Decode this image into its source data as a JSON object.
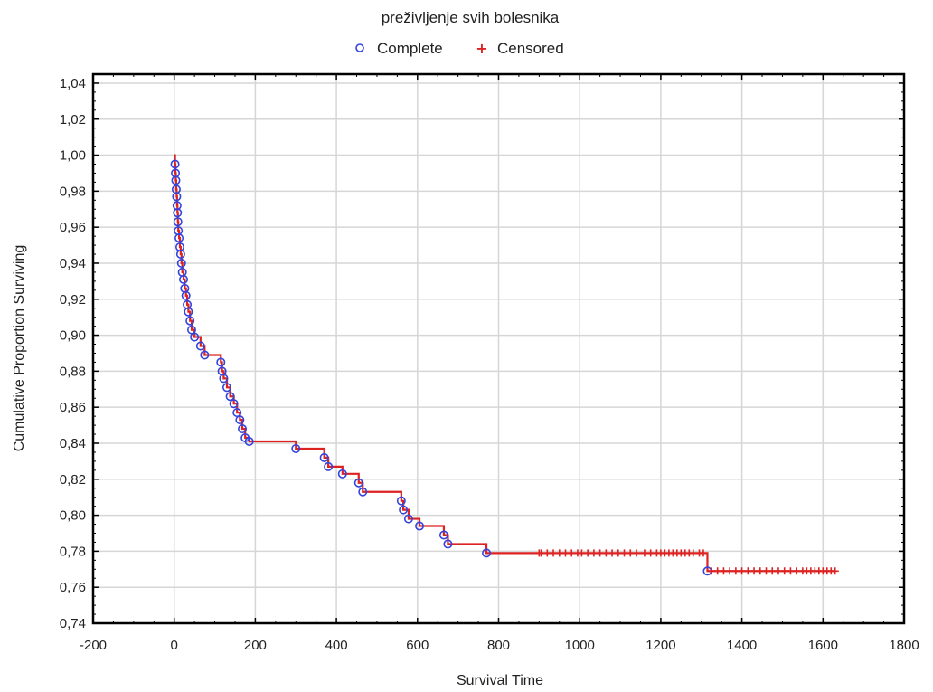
{
  "chart_data": {
    "type": "line",
    "title": "preživljenje svih bolesnika",
    "xlabel": "Survival Time",
    "ylabel": "Cumulative Proportion Surviving",
    "xlim": [
      -200,
      1800
    ],
    "ylim": [
      0.74,
      1.045
    ],
    "x_ticks": [
      "-200",
      "0",
      "200",
      "400",
      "600",
      "800",
      "1000",
      "1200",
      "1400",
      "1600",
      "1800"
    ],
    "y_ticks": [
      "0,74",
      "0,76",
      "0,78",
      "0,80",
      "0,82",
      "0,84",
      "0,86",
      "0,88",
      "0,90",
      "0,92",
      "0,94",
      "0,96",
      "0,98",
      "1,00",
      "1,02",
      "1,04"
    ],
    "grid": true,
    "legend_position": "top-center",
    "colors": {
      "line": "#dd2222",
      "complete": "#3344dd",
      "censored": "#dd2222",
      "grid": "#d6d6d6"
    },
    "series": [
      {
        "name": "Complete",
        "marker": "circle",
        "points": [
          [
            2,
            0.995
          ],
          [
            3,
            0.99
          ],
          [
            4,
            0.986
          ],
          [
            5,
            0.981
          ],
          [
            6,
            0.977
          ],
          [
            7,
            0.972
          ],
          [
            8,
            0.968
          ],
          [
            9,
            0.963
          ],
          [
            10,
            0.958
          ],
          [
            12,
            0.954
          ],
          [
            14,
            0.949
          ],
          [
            16,
            0.945
          ],
          [
            18,
            0.94
          ],
          [
            20,
            0.935
          ],
          [
            23,
            0.931
          ],
          [
            26,
            0.926
          ],
          [
            29,
            0.922
          ],
          [
            32,
            0.917
          ],
          [
            35,
            0.913
          ],
          [
            39,
            0.908
          ],
          [
            43,
            0.903
          ],
          [
            50,
            0.899
          ],
          [
            65,
            0.894
          ],
          [
            75,
            0.889
          ],
          [
            115,
            0.885
          ],
          [
            118,
            0.88
          ],
          [
            122,
            0.876
          ],
          [
            130,
            0.871
          ],
          [
            138,
            0.866
          ],
          [
            147,
            0.862
          ],
          [
            155,
            0.857
          ],
          [
            162,
            0.853
          ],
          [
            168,
            0.848
          ],
          [
            175,
            0.843
          ],
          [
            185,
            0.841
          ],
          [
            300,
            0.837
          ],
          [
            370,
            0.832
          ],
          [
            380,
            0.827
          ],
          [
            415,
            0.823
          ],
          [
            455,
            0.818
          ],
          [
            465,
            0.813
          ],
          [
            560,
            0.808
          ],
          [
            565,
            0.803
          ],
          [
            578,
            0.798
          ],
          [
            605,
            0.794
          ],
          [
            665,
            0.789
          ],
          [
            675,
            0.784
          ],
          [
            770,
            0.779
          ],
          [
            1315,
            0.769
          ]
        ]
      },
      {
        "name": "Censored",
        "marker": "plus",
        "points": [
          [
            900,
            0.779
          ],
          [
            905,
            0.779
          ],
          [
            920,
            0.779
          ],
          [
            935,
            0.779
          ],
          [
            950,
            0.779
          ],
          [
            965,
            0.779
          ],
          [
            980,
            0.779
          ],
          [
            995,
            0.779
          ],
          [
            1005,
            0.779
          ],
          [
            1020,
            0.779
          ],
          [
            1035,
            0.779
          ],
          [
            1050,
            0.779
          ],
          [
            1065,
            0.779
          ],
          [
            1080,
            0.779
          ],
          [
            1095,
            0.779
          ],
          [
            1110,
            0.779
          ],
          [
            1125,
            0.779
          ],
          [
            1140,
            0.779
          ],
          [
            1160,
            0.779
          ],
          [
            1175,
            0.779
          ],
          [
            1190,
            0.779
          ],
          [
            1200,
            0.779
          ],
          [
            1210,
            0.779
          ],
          [
            1220,
            0.779
          ],
          [
            1230,
            0.779
          ],
          [
            1240,
            0.779
          ],
          [
            1250,
            0.779
          ],
          [
            1260,
            0.779
          ],
          [
            1270,
            0.779
          ],
          [
            1280,
            0.779
          ],
          [
            1295,
            0.779
          ],
          [
            1305,
            0.779
          ],
          [
            1325,
            0.769
          ],
          [
            1340,
            0.769
          ],
          [
            1355,
            0.769
          ],
          [
            1370,
            0.769
          ],
          [
            1385,
            0.769
          ],
          [
            1400,
            0.769
          ],
          [
            1415,
            0.769
          ],
          [
            1430,
            0.769
          ],
          [
            1445,
            0.769
          ],
          [
            1460,
            0.769
          ],
          [
            1475,
            0.769
          ],
          [
            1490,
            0.769
          ],
          [
            1505,
            0.769
          ],
          [
            1520,
            0.769
          ],
          [
            1535,
            0.769
          ],
          [
            1550,
            0.769
          ],
          [
            1560,
            0.769
          ],
          [
            1570,
            0.769
          ],
          [
            1580,
            0.769
          ],
          [
            1590,
            0.769
          ],
          [
            1600,
            0.769
          ],
          [
            1610,
            0.769
          ],
          [
            1620,
            0.769
          ],
          [
            1630,
            0.769
          ]
        ]
      }
    ],
    "survival_curve": [
      [
        0,
        1.0
      ],
      [
        2,
        0.995
      ],
      [
        3,
        0.99
      ],
      [
        4,
        0.986
      ],
      [
        5,
        0.981
      ],
      [
        6,
        0.977
      ],
      [
        7,
        0.972
      ],
      [
        8,
        0.968
      ],
      [
        9,
        0.963
      ],
      [
        10,
        0.958
      ],
      [
        12,
        0.954
      ],
      [
        14,
        0.949
      ],
      [
        16,
        0.945
      ],
      [
        18,
        0.94
      ],
      [
        20,
        0.935
      ],
      [
        23,
        0.931
      ],
      [
        26,
        0.926
      ],
      [
        29,
        0.922
      ],
      [
        32,
        0.917
      ],
      [
        35,
        0.913
      ],
      [
        39,
        0.908
      ],
      [
        43,
        0.903
      ],
      [
        50,
        0.899
      ],
      [
        65,
        0.894
      ],
      [
        75,
        0.889
      ],
      [
        115,
        0.885
      ],
      [
        118,
        0.88
      ],
      [
        122,
        0.876
      ],
      [
        130,
        0.871
      ],
      [
        138,
        0.866
      ],
      [
        147,
        0.862
      ],
      [
        155,
        0.857
      ],
      [
        162,
        0.853
      ],
      [
        168,
        0.848
      ],
      [
        175,
        0.843
      ],
      [
        185,
        0.841
      ],
      [
        300,
        0.837
      ],
      [
        370,
        0.832
      ],
      [
        380,
        0.827
      ],
      [
        415,
        0.823
      ],
      [
        455,
        0.818
      ],
      [
        465,
        0.813
      ],
      [
        560,
        0.808
      ],
      [
        565,
        0.803
      ],
      [
        578,
        0.798
      ],
      [
        605,
        0.794
      ],
      [
        665,
        0.789
      ],
      [
        675,
        0.784
      ],
      [
        770,
        0.779
      ],
      [
        1315,
        0.769
      ],
      [
        1630,
        0.769
      ]
    ]
  }
}
